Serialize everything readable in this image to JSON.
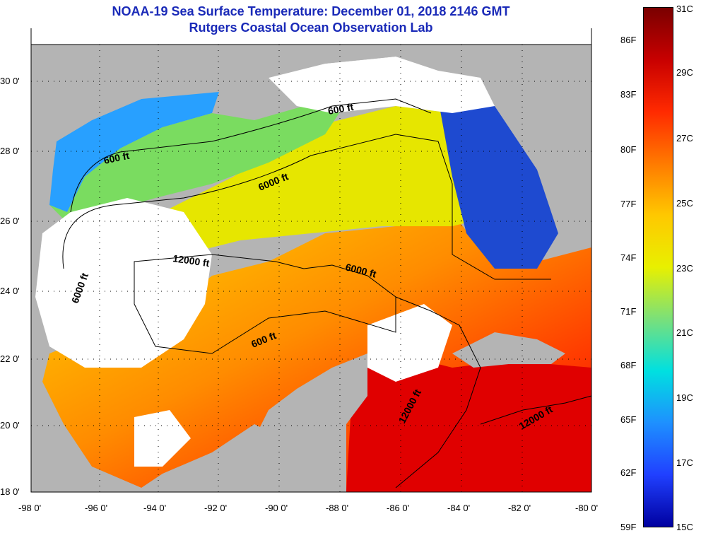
{
  "title": {
    "line1": "NOAA-19 Sea Surface Temperature:  December 01, 2018 2146 GMT",
    "line2": "Rutgers Coastal Ocean Observation Lab"
  },
  "axes": {
    "lat_labels": [
      "30 0'",
      "28 0'",
      "26 0'",
      "24 0'",
      "22 0'",
      "20 0'",
      "18 0'"
    ],
    "lon_labels": [
      "-98 0'",
      "-96 0'",
      "-94 0'",
      "-92 0'",
      "-90 0'",
      "-88 0'",
      "-86 0'",
      "-84 0'",
      "-82 0'",
      "-80 0'"
    ]
  },
  "contours": [
    {
      "label": "600 ft"
    },
    {
      "label": "600 ft"
    },
    {
      "label": "6000 ft"
    },
    {
      "label": "12000 ft"
    },
    {
      "label": "6000 ft"
    },
    {
      "label": "6000 ft"
    },
    {
      "label": "600 ft"
    },
    {
      "label": "12000 ft"
    },
    {
      "label": "12000 ft"
    }
  ],
  "colorbar": {
    "fahrenheit": [
      "86F",
      "83F",
      "80F",
      "77F",
      "74F",
      "71F",
      "68F",
      "65F",
      "62F",
      "59F"
    ],
    "celsius": [
      "31C",
      "29C",
      "27C",
      "25C",
      "23C",
      "21C",
      "19C",
      "17C",
      "15C"
    ],
    "colors": [
      "#7a0000",
      "#c80000",
      "#ff2a00",
      "#ff7a00",
      "#ffc800",
      "#e8f000",
      "#7ae07a",
      "#00e0e0",
      "#1e90ff",
      "#2040ff",
      "#0000a0"
    ]
  },
  "colors": {
    "land": "#b4b4b4",
    "cloud": "#ffffff",
    "title": "#1a2ab8"
  }
}
